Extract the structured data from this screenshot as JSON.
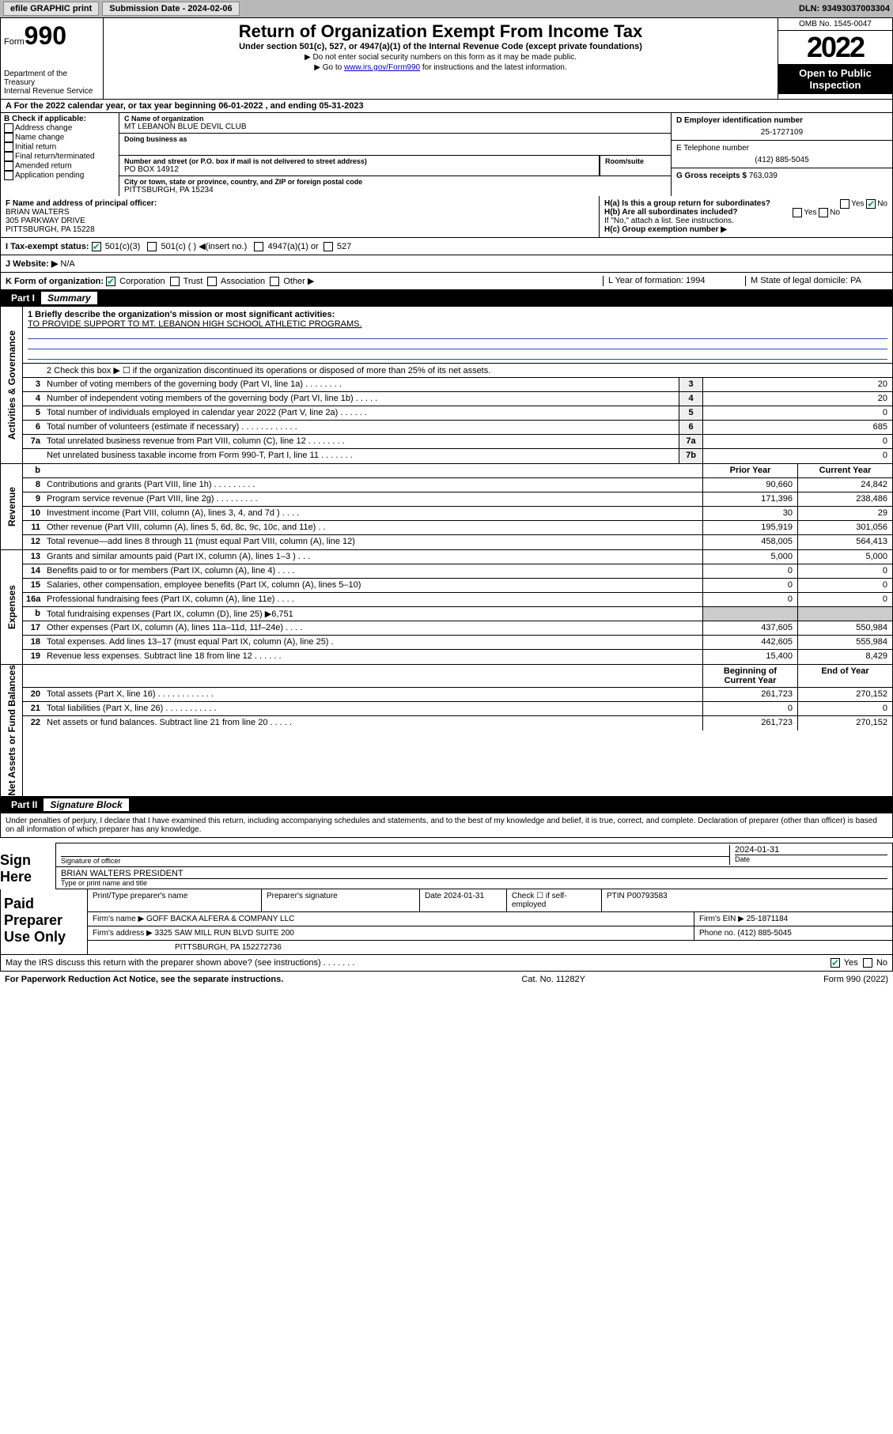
{
  "toolbar": {
    "efile": "efile GRAPHIC print",
    "subdate_label": "Submission Date - 2024-02-06",
    "dln": "DLN: 93493037003304"
  },
  "header": {
    "form_small": "Form",
    "form_num": "990",
    "dept": "Department of the Treasury",
    "irs": "Internal Revenue Service",
    "title": "Return of Organization Exempt From Income Tax",
    "sub": "Under section 501(c), 527, or 4947(a)(1) of the Internal Revenue Code (except private foundations)",
    "line1": "▶ Do not enter social security numbers on this form as it may be made public.",
    "line2_pre": "▶ Go to ",
    "line2_link": "www.irs.gov/Form990",
    "line2_post": " for instructions and the latest information.",
    "omb": "OMB No. 1545-0047",
    "year": "2022",
    "openpub": "Open to Public Inspection"
  },
  "rowA": "A For the 2022 calendar year, or tax year beginning 06-01-2022     , and ending 05-31-2023",
  "B": {
    "label": "B Check if applicable:",
    "items": [
      "Address change",
      "Name change",
      "Initial return",
      "Final return/terminated",
      "Amended return",
      "Application pending"
    ]
  },
  "C": {
    "name_lbl": "C Name of organization",
    "name": "MT LEBANON BLUE DEVIL CLUB",
    "dba_lbl": "Doing business as",
    "dba": "",
    "addr_lbl": "Number and street (or P.O. box if mail is not delivered to street address)",
    "room_lbl": "Room/suite",
    "addr": "PO BOX 14912",
    "city_lbl": "City or town, state or province, country, and ZIP or foreign postal code",
    "city": "PITTSBURGH, PA  15234"
  },
  "D": {
    "ein_lbl": "D Employer identification number",
    "ein": "25-1727109",
    "tel_lbl": "E Telephone number",
    "tel": "(412) 885-5045",
    "gross_lbl": "G Gross receipts $",
    "gross": "763,039"
  },
  "F": {
    "lbl": "F Name and address of principal officer:",
    "name": "BRIAN WALTERS",
    "addr1": "305 PARKWAY DRIVE",
    "addr2": "PITTSBURGH, PA  15228"
  },
  "H": {
    "a": "H(a)  Is this a group return for subordinates?",
    "a_yes": "Yes",
    "a_no": "No",
    "b": "H(b)  Are all subordinates included?",
    "b_yes": "Yes",
    "b_no": "No",
    "note": "If \"No,\" attach a list. See instructions.",
    "c": "H(c)  Group exemption number ▶"
  },
  "I": {
    "pre": "I     Tax-exempt status:",
    "c3": "501(c)(3)",
    "c": "501(c) (  ) ◀(insert no.)",
    "a1": "4947(a)(1) or",
    "s527": "527"
  },
  "J": {
    "lbl": "J    Website: ▶",
    "val": "N/A"
  },
  "K": {
    "lbl": "K Form of organization:",
    "corp": "Corporation",
    "trust": "Trust",
    "assoc": "Association",
    "other": "Other ▶",
    "L": "L Year of formation: 1994",
    "M": "M State of legal domicile: PA"
  },
  "part1": {
    "num": "Part I",
    "title": "Summary"
  },
  "mission": {
    "lbl": "1   Briefly describe the organization's mission or most significant activities:",
    "text": "TO PROVIDE SUPPORT TO MT. LEBANON HIGH SCHOOL ATHLETIC PROGRAMS."
  },
  "line2": "2   Check this box ▶ ☐  if the organization discontinued its operations or disposed of more than 25% of its net assets.",
  "gov_rows": [
    {
      "n": "3",
      "d": "Number of voting members of the governing body (Part VI, line 1a)   .    .    .    .    .    .    .    .",
      "bn": "3",
      "v": "20"
    },
    {
      "n": "4",
      "d": "Number of independent voting members of the governing body (Part VI, line 1b)   .    .    .    .    .",
      "bn": "4",
      "v": "20"
    },
    {
      "n": "5",
      "d": "Total number of individuals employed in calendar year 2022 (Part V, line 2a)   .    .    .    .    .    .",
      "bn": "5",
      "v": "0"
    },
    {
      "n": "6",
      "d": "Total number of volunteers (estimate if necessary)   .    .    .    .    .    .    .    .    .    .    .    .",
      "bn": "6",
      "v": "685"
    },
    {
      "n": "7a",
      "d": "Total unrelated business revenue from Part VIII, column (C), line 12   .    .    .    .    .    .    .    .",
      "bn": "7a",
      "v": "0"
    },
    {
      "n": "",
      "d": "Net unrelated business taxable income from Form 990-T, Part I, line 11   .    .    .    .    .    .    .",
      "bn": "7b",
      "v": "0"
    }
  ],
  "col_hdr": {
    "prior": "Prior Year",
    "current": "Current Year"
  },
  "rev_rows": [
    {
      "n": "8",
      "d": "Contributions and grants (Part VIII, line 1h)   .    .    .    .    .    .    .    .    .",
      "py": "90,660",
      "cy": "24,842"
    },
    {
      "n": "9",
      "d": "Program service revenue (Part VIII, line 2g)   .    .    .    .    .    .    .    .    .",
      "py": "171,396",
      "cy": "238,486"
    },
    {
      "n": "10",
      "d": "Investment income (Part VIII, column (A), lines 3, 4, and 7d )   .    .    .    .",
      "py": "30",
      "cy": "29"
    },
    {
      "n": "11",
      "d": "Other revenue (Part VIII, column (A), lines 5, 6d, 8c, 9c, 10c, and 11e)   .    .",
      "py": "195,919",
      "cy": "301,056"
    },
    {
      "n": "12",
      "d": "Total revenue—add lines 8 through 11 (must equal Part VIII, column (A), line 12)",
      "py": "458,005",
      "cy": "564,413"
    }
  ],
  "exp_rows": [
    {
      "n": "13",
      "d": "Grants and similar amounts paid (Part IX, column (A), lines 1–3 )   .    .    .",
      "py": "5,000",
      "cy": "5,000"
    },
    {
      "n": "14",
      "d": "Benefits paid to or for members (Part IX, column (A), line 4)   .    .    .    .",
      "py": "0",
      "cy": "0"
    },
    {
      "n": "15",
      "d": "Salaries, other compensation, employee benefits (Part IX, column (A), lines 5–10)",
      "py": "0",
      "cy": "0"
    },
    {
      "n": "16a",
      "d": "Professional fundraising fees (Part IX, column (A), line 11e)   .    .    .    .",
      "py": "0",
      "cy": "0"
    },
    {
      "n": "b",
      "d": "Total fundraising expenses (Part IX, column (D), line 25) ▶6,751",
      "py": "",
      "cy": "",
      "shade": true
    },
    {
      "n": "17",
      "d": "Other expenses (Part IX, column (A), lines 11a–11d, 11f–24e)   .    .    .    .",
      "py": "437,605",
      "cy": "550,984"
    },
    {
      "n": "18",
      "d": "Total expenses. Add lines 13–17 (must equal Part IX, column (A), line 25)   .",
      "py": "442,605",
      "cy": "555,984"
    },
    {
      "n": "19",
      "d": "Revenue less expenses. Subtract line 18 from line 12   .    .    .    .    .    .",
      "py": "15,400",
      "cy": "8,429"
    }
  ],
  "na_hdr": {
    "begin": "Beginning of Current Year",
    "end": "End of Year"
  },
  "na_rows": [
    {
      "n": "20",
      "d": "Total assets (Part X, line 16)   .    .    .    .    .    .    .    .    .    .    .    .",
      "py": "261,723",
      "cy": "270,152"
    },
    {
      "n": "21",
      "d": "Total liabilities (Part X, line 26)   .    .    .    .    .    .    .    .    .    .    .",
      "py": "0",
      "cy": "0"
    },
    {
      "n": "22",
      "d": "Net assets or fund balances. Subtract line 21 from line 20   .    .    .    .    .",
      "py": "261,723",
      "cy": "270,152"
    }
  ],
  "vtabs": {
    "gov": "Activities & Governance",
    "rev": "Revenue",
    "exp": "Expenses",
    "na": "Net Assets or Fund Balances"
  },
  "part2": {
    "num": "Part II",
    "title": "Signature Block"
  },
  "sigtext": "Under penalties of perjury, I declare that I have examined this return, including accompanying schedules and statements, and to the best of my knowledge and belief, it is true, correct, and complete. Declaration of preparer (other than officer) is based on all information of which preparer has any knowledge.",
  "sign": {
    "here": "Sign Here",
    "sig_lbl": "Signature of officer",
    "date": "2024-01-31",
    "date_lbl": "Date",
    "name": "BRIAN WALTERS PRESIDENT",
    "name_lbl": "Type or print name and title"
  },
  "prep": {
    "label": "Paid Preparer Use Only",
    "r1": {
      "c1": "Print/Type preparer's name",
      "c2": "Preparer's signature",
      "c3": "Date 2024-01-31",
      "c4": "Check ☐ if self-employed",
      "c5": "PTIN P00793583"
    },
    "r2": {
      "c1": "Firm's name    ▶ GOFF BACKA ALFERA & COMPANY LLC",
      "c2": "Firm's EIN ▶ 25-1871184"
    },
    "r3": {
      "c1": "Firm's address ▶ 3325 SAW MILL RUN BLVD SUITE 200",
      "c2": "Phone no. (412) 885-5045"
    },
    "r4": {
      "c1": "PITTSBURGH, PA  152272736"
    }
  },
  "discuss": {
    "q": "May the IRS discuss this return with the preparer shown above? (see instructions)   .    .    .    .    .    .    .",
    "yes": "Yes",
    "no": "No"
  },
  "foot": {
    "l": "For Paperwork Reduction Act Notice, see the separate instructions.",
    "c": "Cat. No. 11282Y",
    "r": "Form 990 (2022)"
  }
}
